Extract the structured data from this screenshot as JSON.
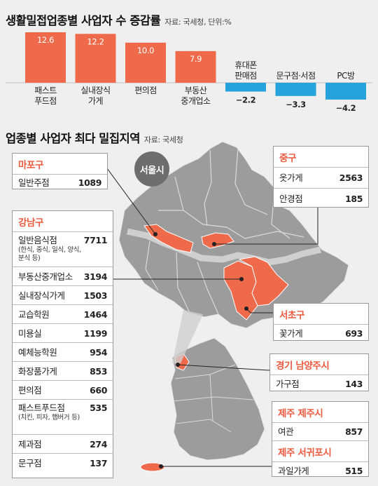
{
  "chart_data": {
    "type": "bar",
    "title": "생활밀접업종별 사업자 수 증감률",
    "source": "자료: 국세청, 단위:%",
    "categories": [
      "패스트\n푸드점",
      "실내장식\n가게",
      "편의점",
      "부동산\n중개업소",
      "휴대폰\n판매점",
      "문구점·서점",
      "PC방"
    ],
    "values": [
      12.6,
      12.2,
      10.0,
      7.9,
      -2.2,
      -3.3,
      -4.2
    ],
    "value_labels": [
      "12.6",
      "12.2",
      "10.0",
      "7.9",
      "−2.2",
      "−3.3",
      "−4.2"
    ],
    "positive_color": "#ef6a4a",
    "negative_color": "#26a2dc"
  },
  "section2": {
    "title": "업종별 사업자 최다 밀집지역",
    "source": "자료: 국세청",
    "seoul_label": "서울시"
  },
  "boxes": {
    "mapo": {
      "head": "마포구",
      "rows": [
        {
          "label": "일반주점",
          "value": "1089"
        }
      ]
    },
    "jung": {
      "head": "중구",
      "rows": [
        {
          "label": "옷가게",
          "value": "2563"
        },
        {
          "label": "안경점",
          "value": "185"
        }
      ]
    },
    "gangnam": {
      "head": "강남구",
      "rows": [
        {
          "label": "일반음식점",
          "sub": "(한식, 중식, 일식, 양식, 분식 등)",
          "value": "7711"
        },
        {
          "label": "부동산중개업소",
          "value": "3194"
        },
        {
          "label": "실내장식가게",
          "value": "1503"
        },
        {
          "label": "교습학원",
          "value": "1464"
        },
        {
          "label": "미용실",
          "value": "1199"
        },
        {
          "label": "예체능학원",
          "value": "954"
        },
        {
          "label": "화장품가게",
          "value": "853"
        },
        {
          "label": "편의점",
          "value": "660"
        },
        {
          "label": "패스트푸드점",
          "sub": "(치킨, 피자, 햄버거 등)",
          "value": "535"
        },
        {
          "label": "제과점",
          "value": "274"
        },
        {
          "label": "문구점",
          "value": "137"
        }
      ]
    },
    "seocho": {
      "head": "서초구",
      "rows": [
        {
          "label": "꽃가게",
          "value": "693"
        }
      ]
    },
    "namyang": {
      "head": "경기 남양주시",
      "rows": [
        {
          "label": "가구점",
          "value": "143"
        }
      ]
    },
    "jeju": {
      "head": "제주 제주시",
      "rows": [
        {
          "label": "여관",
          "value": "857"
        }
      ],
      "head2": "제주 서귀포시",
      "rows2": [
        {
          "label": "과일가게",
          "value": "515"
        }
      ]
    }
  }
}
